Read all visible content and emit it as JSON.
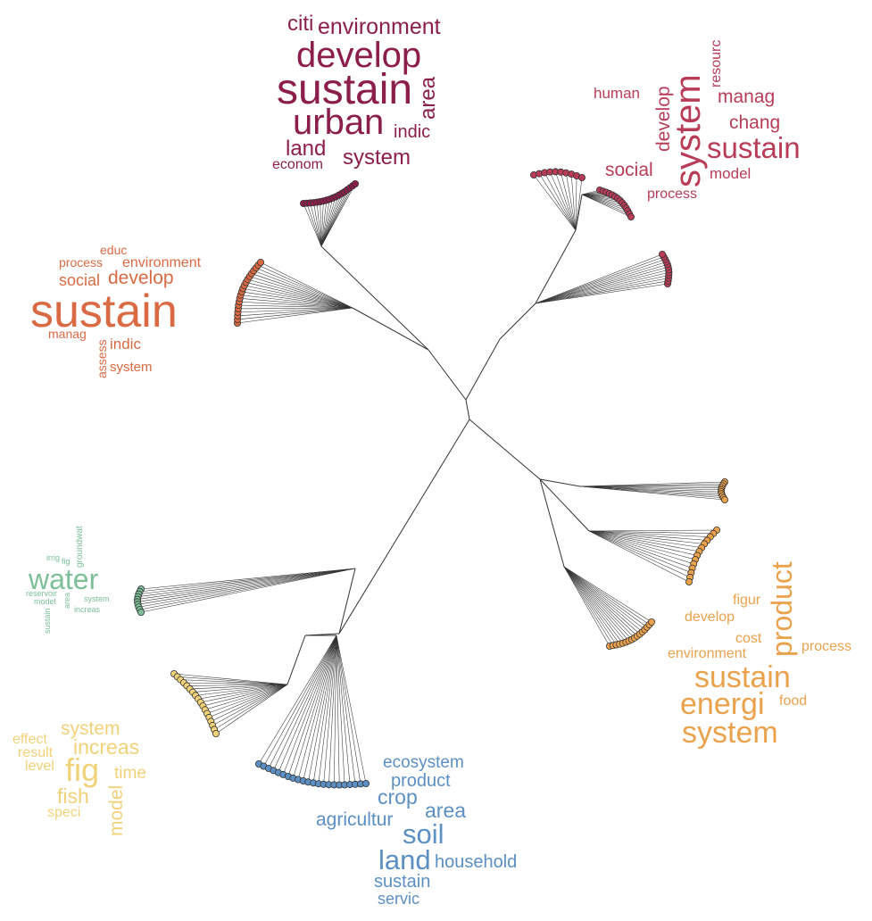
{
  "clusters": [
    {
      "id": "urban",
      "color": "#8b1e4b",
      "words": [
        "citi",
        "environment",
        "develop",
        "sustain",
        "area",
        "urban",
        "indic",
        "land",
        "system",
        "econom"
      ]
    },
    {
      "id": "systems",
      "color": "#b83c57",
      "words": [
        "resourc",
        "human",
        "develop",
        "system",
        "manag",
        "chang",
        "sustain",
        "social",
        "model",
        "process"
      ]
    },
    {
      "id": "education",
      "color": "#d96a44",
      "words": [
        "educ",
        "process",
        "environment",
        "social",
        "develop",
        "sustain",
        "manag",
        "assess",
        "indic",
        "system"
      ]
    },
    {
      "id": "energy",
      "color": "#eba24c",
      "words": [
        "product",
        "figur",
        "develop",
        "cost",
        "process",
        "environment",
        "sustain",
        "energi",
        "food",
        "system"
      ]
    },
    {
      "id": "water",
      "color": "#7cbf99",
      "words": [
        "groundwat",
        "irrig",
        "fig",
        "water",
        "reservoir",
        "system",
        "model",
        "area",
        "increas",
        "sustain"
      ]
    },
    {
      "id": "fisheries",
      "color": "#f2d279",
      "words": [
        "system",
        "effect",
        "increas",
        "result",
        "level",
        "fig",
        "time",
        "fish",
        "speci",
        "model"
      ]
    },
    {
      "id": "agriculture",
      "color": "#5c8fc4",
      "words": [
        "ecosystem",
        "product",
        "crop",
        "area",
        "agricultur",
        "soil",
        "land",
        "household",
        "sustain",
        "servic"
      ]
    }
  ]
}
